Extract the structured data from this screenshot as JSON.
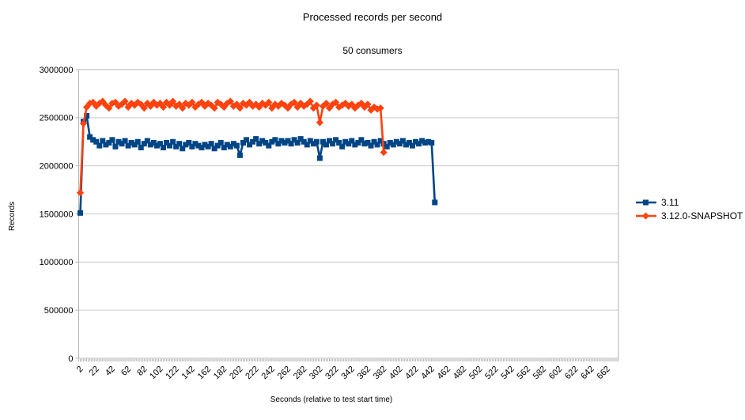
{
  "chart": {
    "title": "Processed records per second",
    "subtitle": "50 consumers",
    "x_axis_title": "Seconds  (relative to test start time)",
    "y_axis_title": "Records"
  },
  "chart_data": {
    "type": "line",
    "title": "Processed records per second",
    "subtitle": "50 consumers",
    "xlabel": "Seconds  (relative to test start time)",
    "ylabel": "Records",
    "xlim": [
      0,
      676
    ],
    "ylim": [
      0,
      3000000
    ],
    "y_ticks": [
      0,
      500000,
      1000000,
      1500000,
      2000000,
      2500000,
      3000000
    ],
    "x_tick_labels": [
      2,
      22,
      42,
      62,
      82,
      102,
      122,
      142,
      162,
      182,
      202,
      222,
      242,
      262,
      282,
      302,
      322,
      342,
      362,
      382,
      402,
      422,
      442,
      462,
      482,
      502,
      522,
      542,
      562,
      582,
      602,
      622,
      642,
      662
    ],
    "x_minor_tick_step": 2,
    "grid": "horizontal",
    "legend_position": "right",
    "frame_color": "#b3b3b3",
    "grid_color": "#c9c9c9",
    "series": [
      {
        "name": "3.11",
        "color": "#004586",
        "marker": "square",
        "x": [
          2,
          6,
          10,
          14,
          18,
          22,
          26,
          30,
          34,
          38,
          42,
          46,
          50,
          54,
          58,
          62,
          66,
          70,
          74,
          78,
          82,
          86,
          90,
          94,
          98,
          102,
          106,
          110,
          114,
          118,
          122,
          126,
          130,
          134,
          138,
          142,
          146,
          150,
          154,
          158,
          162,
          166,
          170,
          174,
          178,
          182,
          186,
          190,
          194,
          198,
          202,
          206,
          210,
          214,
          218,
          222,
          226,
          230,
          234,
          238,
          242,
          246,
          250,
          254,
          258,
          262,
          266,
          270,
          274,
          278,
          282,
          286,
          290,
          294,
          298,
          302,
          306,
          310,
          314,
          318,
          322,
          326,
          330,
          334,
          338,
          342,
          346,
          350,
          354,
          358,
          362,
          366,
          370,
          374,
          378,
          382,
          386,
          390,
          394,
          398,
          402,
          406,
          410,
          414,
          418,
          422,
          426,
          430,
          434,
          438,
          442,
          446
        ],
        "y": [
          1510000,
          2460000,
          2520000,
          2300000,
          2270000,
          2250000,
          2210000,
          2260000,
          2220000,
          2240000,
          2270000,
          2200000,
          2250000,
          2230000,
          2260000,
          2210000,
          2240000,
          2220000,
          2250000,
          2190000,
          2230000,
          2260000,
          2220000,
          2240000,
          2210000,
          2230000,
          2190000,
          2240000,
          2210000,
          2250000,
          2200000,
          2230000,
          2180000,
          2220000,
          2240000,
          2200000,
          2230000,
          2210000,
          2190000,
          2220000,
          2200000,
          2230000,
          2180000,
          2210000,
          2240000,
          2190000,
          2220000,
          2200000,
          2230000,
          2210000,
          2110000,
          2240000,
          2270000,
          2220000,
          2250000,
          2280000,
          2230000,
          2260000,
          2240000,
          2210000,
          2250000,
          2270000,
          2230000,
          2260000,
          2240000,
          2260000,
          2230000,
          2270000,
          2240000,
          2280000,
          2250000,
          2220000,
          2260000,
          2230000,
          2250000,
          2080000,
          2250000,
          2220000,
          2260000,
          2230000,
          2270000,
          2240000,
          2200000,
          2250000,
          2230000,
          2260000,
          2220000,
          2240000,
          2270000,
          2230000,
          2240000,
          2210000,
          2250000,
          2220000,
          2260000,
          2230000,
          2200000,
          2240000,
          2220000,
          2250000,
          2230000,
          2260000,
          2220000,
          2240000,
          2210000,
          2250000,
          2230000,
          2260000,
          2240000,
          2250000,
          2240000,
          1620000
        ]
      },
      {
        "name": "3.12.0-SNAPSHOT",
        "color": "#FF420E",
        "marker": "diamond",
        "x": [
          2,
          6,
          10,
          14,
          18,
          22,
          26,
          30,
          34,
          38,
          42,
          46,
          50,
          54,
          58,
          62,
          66,
          70,
          74,
          78,
          82,
          86,
          90,
          94,
          98,
          102,
          106,
          110,
          114,
          118,
          122,
          126,
          130,
          134,
          138,
          142,
          146,
          150,
          154,
          158,
          162,
          166,
          170,
          174,
          178,
          182,
          186,
          190,
          194,
          198,
          202,
          206,
          210,
          214,
          218,
          222,
          226,
          230,
          234,
          238,
          242,
          246,
          250,
          254,
          258,
          262,
          266,
          270,
          274,
          278,
          282,
          286,
          290,
          294,
          298,
          302,
          306,
          310,
          314,
          318,
          322,
          326,
          330,
          334,
          338,
          342,
          346,
          350,
          354,
          358,
          362,
          366,
          370,
          374,
          378,
          382
        ],
        "y": [
          1720000,
          2440000,
          2610000,
          2650000,
          2660000,
          2620000,
          2650000,
          2670000,
          2630000,
          2600000,
          2650000,
          2660000,
          2620000,
          2640000,
          2670000,
          2610000,
          2650000,
          2630000,
          2660000,
          2640000,
          2600000,
          2650000,
          2620000,
          2660000,
          2630000,
          2650000,
          2610000,
          2660000,
          2630000,
          2670000,
          2620000,
          2640000,
          2600000,
          2650000,
          2630000,
          2660000,
          2610000,
          2640000,
          2660000,
          2620000,
          2650000,
          2630000,
          2600000,
          2660000,
          2640000,
          2610000,
          2650000,
          2670000,
          2620000,
          2640000,
          2600000,
          2650000,
          2630000,
          2660000,
          2620000,
          2640000,
          2610000,
          2650000,
          2630000,
          2660000,
          2600000,
          2640000,
          2620000,
          2650000,
          2630000,
          2600000,
          2640000,
          2660000,
          2610000,
          2650000,
          2620000,
          2640000,
          2670000,
          2600000,
          2630000,
          2450000,
          2620000,
          2650000,
          2600000,
          2640000,
          2660000,
          2610000,
          2630000,
          2650000,
          2620000,
          2640000,
          2600000,
          2630000,
          2650000,
          2610000,
          2640000,
          2580000,
          2610000,
          2590000,
          2600000,
          2140000
        ]
      }
    ]
  }
}
